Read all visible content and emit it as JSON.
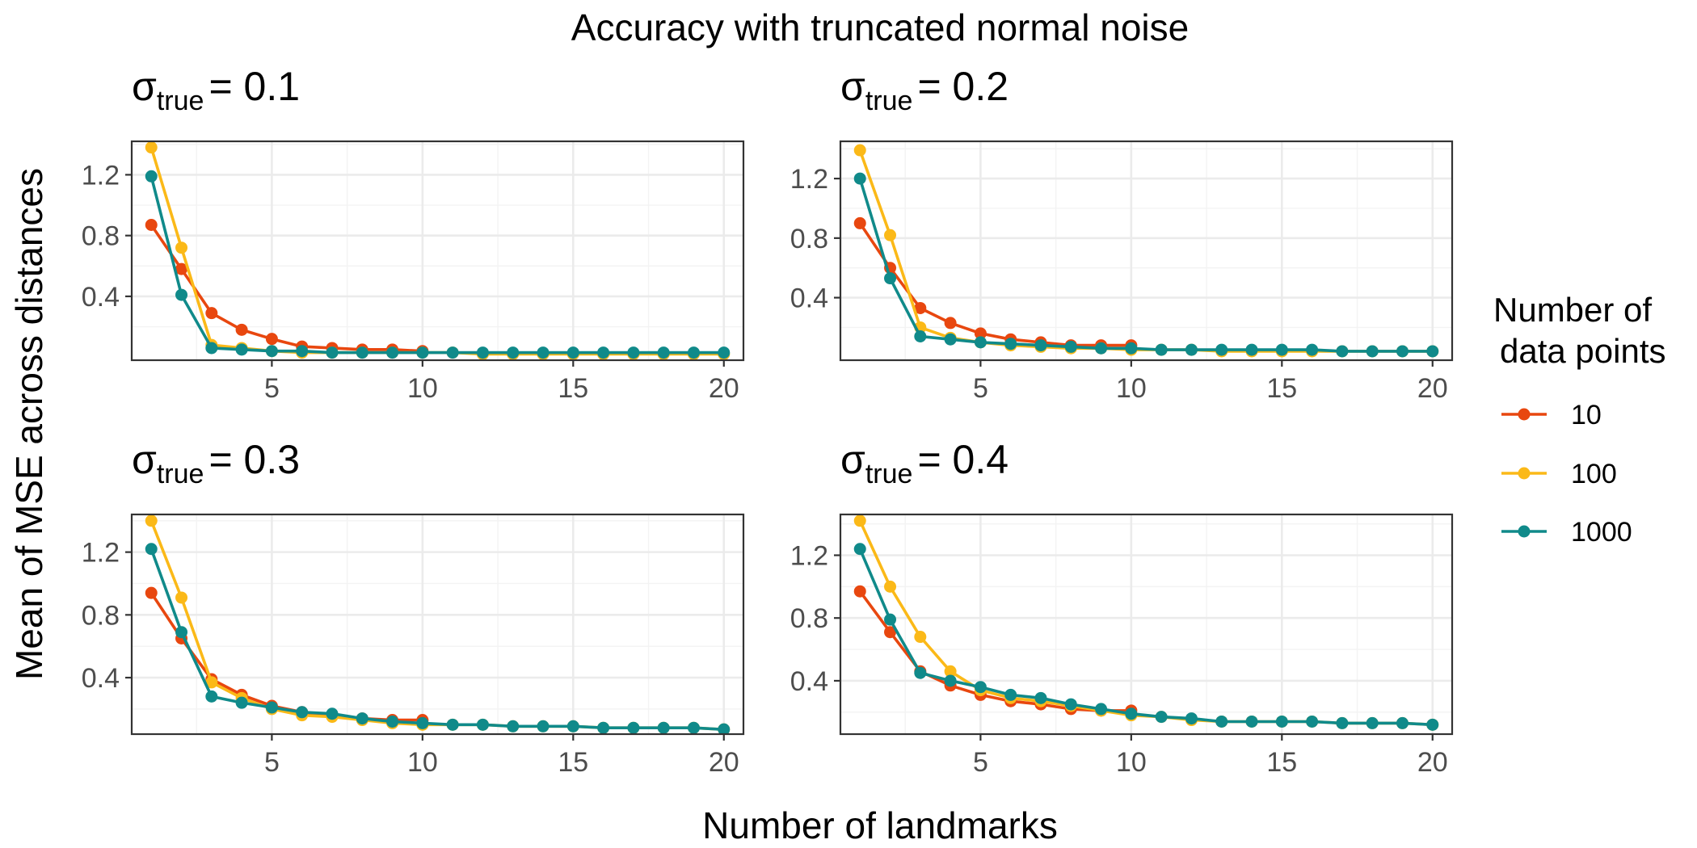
{
  "chart_data": {
    "type": "line",
    "title": "Accuracy with truncated normal noise",
    "xlabel": "Number of landmarks",
    "ylabel": "Mean of MSE across distances",
    "legend": {
      "title_line1": "Number of",
      "title_line2": "data points",
      "placement": "right"
    },
    "series_styles": [
      {
        "name": "10",
        "color": "#E8470F"
      },
      {
        "name": "100",
        "color": "#FBB918"
      },
      {
        "name": "1000",
        "color": "#108A8A"
      }
    ],
    "x_ticks": [
      5,
      10,
      15,
      20
    ],
    "y_ticks": [
      0.4,
      0.8,
      1.2
    ],
    "grid": true,
    "panels": [
      {
        "title_symbol": "σ",
        "title_sub": "true",
        "title_value": "= 0.1",
        "xlim": [
          0.35,
          20.65
        ],
        "ylim": [
          -0.02,
          1.42
        ],
        "series": [
          {
            "name": "10",
            "x": [
              1,
              2,
              3,
              4,
              5,
              6,
              7,
              8,
              9,
              10
            ],
            "values": [
              0.87,
              0.58,
              0.29,
              0.18,
              0.12,
              0.07,
              0.06,
              0.05,
              0.05,
              0.04
            ]
          },
          {
            "name": "100",
            "x": [
              1,
              2,
              3,
              4,
              5,
              6,
              7,
              8,
              9,
              10,
              11,
              12,
              13,
              14,
              15,
              16,
              17,
              18,
              19,
              20
            ],
            "values": [
              1.38,
              0.72,
              0.08,
              0.06,
              0.04,
              0.03,
              0.03,
              0.03,
              0.03,
              0.03,
              0.03,
              0.02,
              0.02,
              0.02,
              0.02,
              0.02,
              0.02,
              0.02,
              0.02,
              0.02
            ]
          },
          {
            "name": "1000",
            "x": [
              1,
              2,
              3,
              4,
              5,
              6,
              7,
              8,
              9,
              10,
              11,
              12,
              13,
              14,
              15,
              16,
              17,
              18,
              19,
              20
            ],
            "values": [
              1.19,
              0.41,
              0.06,
              0.05,
              0.04,
              0.04,
              0.03,
              0.03,
              0.03,
              0.03,
              0.03,
              0.03,
              0.03,
              0.03,
              0.03,
              0.03,
              0.03,
              0.03,
              0.03,
              0.03
            ]
          }
        ]
      },
      {
        "title_symbol": "σ",
        "title_sub": "true",
        "title_value": "= 0.2",
        "xlim": [
          0.35,
          20.65
        ],
        "ylim": [
          -0.02,
          1.45
        ],
        "series": [
          {
            "name": "10",
            "x": [
              1,
              2,
              3,
              4,
              5,
              6,
              7,
              8,
              9,
              10
            ],
            "values": [
              0.9,
              0.6,
              0.33,
              0.23,
              0.16,
              0.12,
              0.1,
              0.08,
              0.08,
              0.08
            ]
          },
          {
            "name": "100",
            "x": [
              1,
              2,
              3,
              4,
              5,
              6,
              7,
              8,
              9,
              10,
              11,
              12,
              13,
              14,
              15,
              16,
              17,
              18,
              19,
              20
            ],
            "values": [
              1.39,
              0.82,
              0.2,
              0.13,
              0.1,
              0.08,
              0.07,
              0.06,
              0.06,
              0.05,
              0.05,
              0.05,
              0.04,
              0.04,
              0.04,
              0.04,
              0.04,
              0.04,
              0.04,
              0.04
            ]
          },
          {
            "name": "1000",
            "x": [
              1,
              2,
              3,
              4,
              5,
              6,
              7,
              8,
              9,
              10,
              11,
              12,
              13,
              14,
              15,
              16,
              17,
              18,
              19,
              20
            ],
            "values": [
              1.2,
              0.53,
              0.14,
              0.12,
              0.1,
              0.09,
              0.08,
              0.07,
              0.06,
              0.06,
              0.05,
              0.05,
              0.05,
              0.05,
              0.05,
              0.05,
              0.04,
              0.04,
              0.04,
              0.04
            ]
          }
        ]
      },
      {
        "title_symbol": "σ",
        "title_sub": "true",
        "title_value": "= 0.3",
        "xlim": [
          0.35,
          20.65
        ],
        "ylim": [
          0.04,
          1.44
        ],
        "series": [
          {
            "name": "10",
            "x": [
              1,
              2,
              3,
              4,
              5,
              6,
              7,
              8,
              9,
              10
            ],
            "values": [
              0.94,
              0.65,
              0.39,
              0.29,
              0.22,
              0.18,
              0.16,
              0.14,
              0.13,
              0.13
            ]
          },
          {
            "name": "100",
            "x": [
              1,
              2,
              3,
              4,
              5,
              6,
              7,
              8,
              9,
              10,
              11,
              12,
              13,
              14,
              15,
              16,
              17,
              18,
              19,
              20
            ],
            "values": [
              1.4,
              0.91,
              0.37,
              0.27,
              0.2,
              0.16,
              0.15,
              0.13,
              0.11,
              0.1,
              0.1,
              0.1,
              0.09,
              0.09,
              0.09,
              0.08,
              0.08,
              0.08,
              0.08,
              0.07
            ]
          },
          {
            "name": "1000",
            "x": [
              1,
              2,
              3,
              4,
              5,
              6,
              7,
              8,
              9,
              10,
              11,
              12,
              13,
              14,
              15,
              16,
              17,
              18,
              19,
              20
            ],
            "values": [
              1.22,
              0.69,
              0.28,
              0.24,
              0.21,
              0.18,
              0.17,
              0.14,
              0.12,
              0.11,
              0.1,
              0.1,
              0.09,
              0.09,
              0.09,
              0.08,
              0.08,
              0.08,
              0.08,
              0.07
            ]
          }
        ]
      },
      {
        "title_symbol": "σ",
        "title_sub": "true",
        "title_value": "= 0.4",
        "xlim": [
          0.35,
          20.65
        ],
        "ylim": [
          0.06,
          1.46
        ],
        "series": [
          {
            "name": "10",
            "x": [
              1,
              2,
              3,
              4,
              5,
              6,
              7,
              8,
              9,
              10
            ],
            "values": [
              0.97,
              0.71,
              0.46,
              0.37,
              0.31,
              0.27,
              0.25,
              0.22,
              0.21,
              0.21
            ]
          },
          {
            "name": "100",
            "x": [
              1,
              2,
              3,
              4,
              5,
              6,
              7,
              8,
              9,
              10,
              11,
              12,
              13,
              14,
              15,
              16,
              17,
              18,
              19,
              20
            ],
            "values": [
              1.42,
              1.0,
              0.68,
              0.46,
              0.34,
              0.29,
              0.27,
              0.24,
              0.21,
              0.18,
              0.17,
              0.15,
              0.14,
              0.14,
              0.14,
              0.14,
              0.13,
              0.13,
              0.13,
              0.12
            ]
          },
          {
            "name": "1000",
            "x": [
              1,
              2,
              3,
              4,
              5,
              6,
              7,
              8,
              9,
              10,
              11,
              12,
              13,
              14,
              15,
              16,
              17,
              18,
              19,
              20
            ],
            "values": [
              1.24,
              0.79,
              0.45,
              0.4,
              0.36,
              0.31,
              0.29,
              0.25,
              0.22,
              0.19,
              0.17,
              0.16,
              0.14,
              0.14,
              0.14,
              0.14,
              0.13,
              0.13,
              0.13,
              0.12
            ]
          }
        ]
      }
    ]
  }
}
